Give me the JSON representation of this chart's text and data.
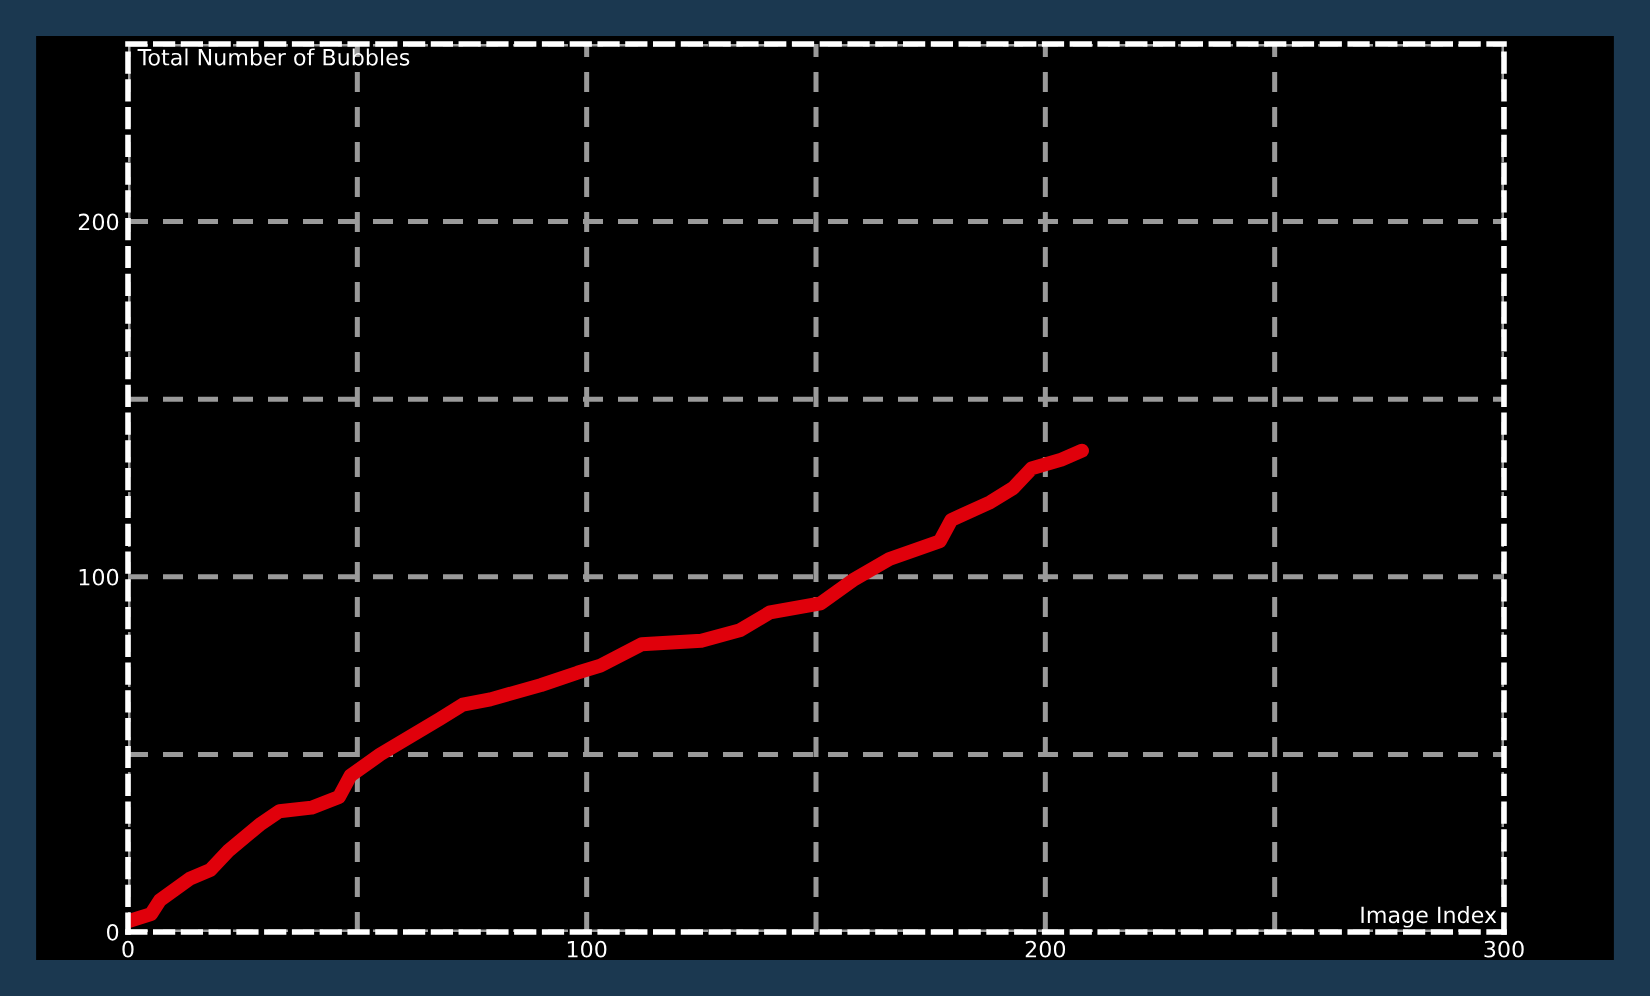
{
  "chart_data": {
    "type": "line",
    "xlabel": "Image Index",
    "ylabel": "Total Number of Bubbles",
    "series": [
      {
        "color": "#e0000b",
        "x": [
          0,
          5,
          7,
          13.5,
          18,
          22,
          29,
          33,
          40,
          46,
          48.5,
          55,
          61.5,
          68,
          73,
          79,
          90,
          98,
          103,
          112,
          125,
          133.5,
          140,
          151,
          158,
          166,
          177,
          179.5,
          188,
          193,
          197,
          203.5,
          208
        ],
        "values": [
          3,
          5,
          9,
          15,
          17.5,
          23,
          30.5,
          34,
          35,
          38,
          44,
          50,
          55,
          60,
          64,
          65.5,
          69.5,
          73,
          75,
          81,
          82,
          85,
          90,
          92.5,
          99,
          105,
          110,
          116,
          121,
          125,
          130.5,
          133,
          135.5
        ]
      }
    ],
    "xlim": [
      0,
      300
    ],
    "ylim": [
      0,
      250
    ],
    "xticks": [
      0,
      {
        "value": 50,
        "label": null
      },
      100,
      {
        "value": 150,
        "label": null
      },
      200,
      {
        "value": 250,
        "label": null
      },
      300
    ],
    "yticks": [
      0,
      {
        "value": 50,
        "label": null
      },
      100,
      {
        "value": 150,
        "label": null
      },
      200,
      {
        "value": 250,
        "label": null
      }
    ],
    "grid": true,
    "marker": "none",
    "line_style": "solid",
    "legend": false
  }
}
